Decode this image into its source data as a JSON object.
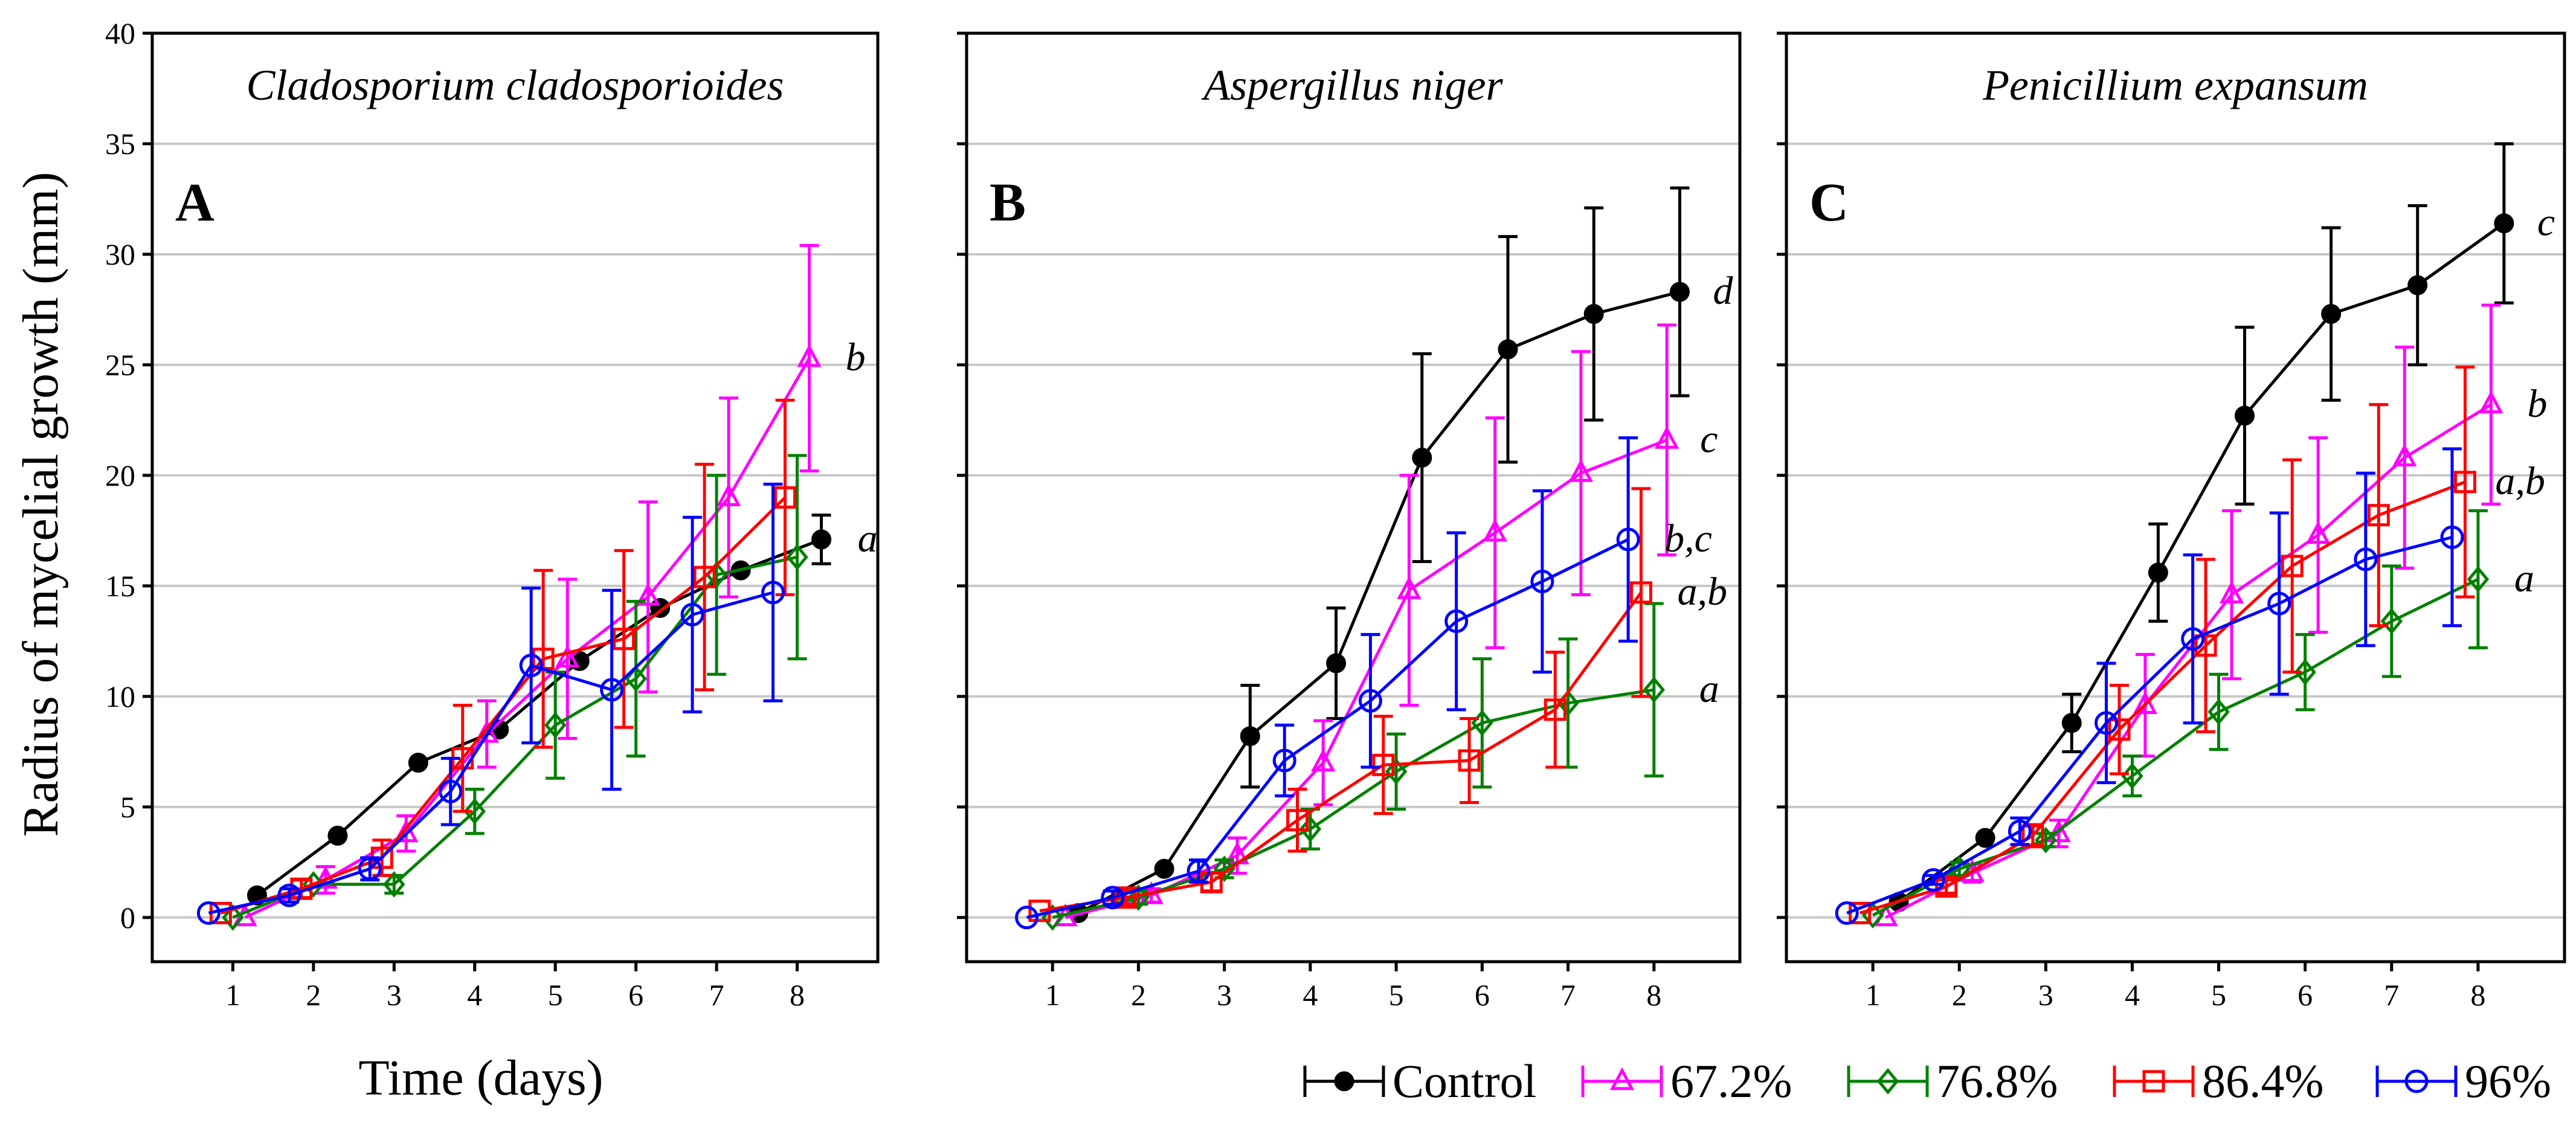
{
  "figure": {
    "ylabel": "Radius of mycelial growth (mm)",
    "xlabel": "Time (days)"
  },
  "series_styles": [
    {
      "name": "Control",
      "color": "#000000",
      "marker": "filled-circle"
    },
    {
      "name": "67.2%",
      "color": "#ff00ff",
      "marker": "triangle"
    },
    {
      "name": "76.8%",
      "color": "#008000",
      "marker": "diamond"
    },
    {
      "name": "86.4%",
      "color": "#ff0000",
      "marker": "square"
    },
    {
      "name": "96%",
      "color": "#0000ff",
      "marker": "circle"
    }
  ],
  "chart_data": [
    {
      "type": "line",
      "panel": "A",
      "title": "Cladosporium cladosporioides",
      "xlabel": "Time (days)",
      "ylabel": "Radius of mycelial growth (mm)",
      "xlim": [
        0,
        9
      ],
      "ylim": [
        -2,
        40
      ],
      "xticks": [
        1,
        2,
        3,
        4,
        5,
        6,
        7,
        8
      ],
      "yticks": [
        0,
        5,
        10,
        15,
        20,
        25,
        30,
        35,
        40
      ],
      "grid": true,
      "series": [
        {
          "name": "Control",
          "x": [
            1.3,
            2.3,
            3.3,
            4.3,
            5.3,
            6.3,
            7.3,
            8.3
          ],
          "values": [
            1.0,
            3.7,
            7.0,
            8.5,
            11.6,
            14.0,
            15.7,
            17.1
          ],
          "errors": [
            0,
            0,
            0,
            0,
            0,
            0,
            0,
            1.1
          ]
        },
        {
          "name": "67.2%",
          "x": [
            1.15,
            2.15,
            3.15,
            4.15,
            5.15,
            6.15,
            7.15,
            8.15
          ],
          "values": [
            0.0,
            1.7,
            3.8,
            8.3,
            11.7,
            14.5,
            19.0,
            25.3
          ],
          "errors": [
            0,
            0.6,
            0.8,
            1.5,
            3.6,
            4.3,
            4.5,
            5.1
          ]
        },
        {
          "name": "76.8%",
          "x": [
            1.0,
            2.0,
            3.0,
            4.0,
            5.0,
            6.0,
            7.0,
            8.0
          ],
          "values": [
            0.0,
            1.5,
            1.5,
            4.8,
            8.7,
            10.8,
            15.5,
            16.3
          ],
          "errors": [
            0,
            0,
            0.4,
            1.0,
            2.4,
            3.5,
            4.5,
            4.6
          ]
        },
        {
          "name": "86.4%",
          "x": [
            0.85,
            1.85,
            2.85,
            3.85,
            4.85,
            5.85,
            6.85,
            7.85
          ],
          "values": [
            0.2,
            1.3,
            2.7,
            7.2,
            11.7,
            12.6,
            15.4,
            19.0
          ],
          "errors": [
            0,
            0.4,
            0.8,
            2.4,
            4.0,
            4.0,
            5.1,
            4.4
          ]
        },
        {
          "name": "96%",
          "x": [
            0.7,
            1.7,
            2.7,
            3.7,
            4.7,
            5.7,
            6.7,
            7.7
          ],
          "values": [
            0.2,
            1.0,
            2.2,
            5.7,
            11.4,
            10.3,
            13.7,
            14.7
          ],
          "errors": [
            0,
            0.3,
            0.5,
            1.5,
            3.5,
            4.5,
            4.4,
            4.9
          ]
        }
      ],
      "significance_labels": [
        {
          "series": "67.2%",
          "text": "b"
        },
        {
          "series": "Control",
          "text": "a"
        }
      ]
    },
    {
      "type": "line",
      "panel": "B",
      "title": "Aspergillus niger",
      "xlabel": "Time (days)",
      "ylabel": "Radius of mycelial growth (mm)",
      "xlim": [
        0,
        9
      ],
      "ylim": [
        -2,
        40
      ],
      "xticks": [
        1,
        2,
        3,
        4,
        5,
        6,
        7,
        8
      ],
      "yticks": [
        0,
        5,
        10,
        15,
        20,
        25,
        30,
        35,
        40
      ],
      "grid": true,
      "series": [
        {
          "name": "Control",
          "x": [
            1.3,
            2.3,
            3.3,
            4.3,
            5.3,
            6.3,
            7.3,
            8.3
          ],
          "values": [
            0.2,
            2.2,
            8.2,
            11.5,
            20.8,
            25.7,
            27.3,
            28.3
          ],
          "errors": [
            0,
            0,
            2.3,
            2.5,
            4.7,
            5.1,
            4.8,
            4.7
          ]
        },
        {
          "name": "67.2%",
          "x": [
            1.15,
            2.15,
            3.15,
            4.15,
            5.15,
            6.15,
            7.15,
            8.15
          ],
          "values": [
            0.0,
            1.0,
            2.8,
            7.0,
            14.8,
            17.4,
            20.1,
            21.6
          ],
          "errors": [
            0,
            0.3,
            0.8,
            1.9,
            5.2,
            5.2,
            5.5,
            5.2
          ]
        },
        {
          "name": "76.8%",
          "x": [
            1.0,
            2.0,
            3.0,
            4.0,
            5.0,
            6.0,
            7.0,
            8.0
          ],
          "values": [
            0.0,
            0.9,
            2.2,
            4.0,
            6.6,
            8.8,
            9.7,
            10.3
          ],
          "errors": [
            0,
            0.3,
            0.4,
            0.9,
            1.7,
            2.9,
            2.9,
            3.9
          ]
        },
        {
          "name": "86.4%",
          "x": [
            0.85,
            1.85,
            2.85,
            3.85,
            4.85,
            5.85,
            6.85,
            7.85
          ],
          "values": [
            0.3,
            0.9,
            1.6,
            4.4,
            6.9,
            7.1,
            9.4,
            14.7
          ],
          "errors": [
            0,
            0.3,
            0.4,
            1.4,
            2.2,
            1.9,
            2.6,
            4.7
          ]
        },
        {
          "name": "96%",
          "x": [
            0.7,
            1.7,
            2.7,
            3.7,
            4.7,
            5.7,
            6.7,
            7.7
          ],
          "values": [
            0.0,
            0.9,
            2.1,
            7.1,
            9.8,
            13.4,
            15.2,
            17.1
          ],
          "errors": [
            0,
            0.3,
            0.5,
            1.6,
            3.0,
            4.0,
            4.1,
            4.6
          ]
        }
      ],
      "significance_labels": [
        {
          "series": "Control",
          "text": "d"
        },
        {
          "series": "67.2%",
          "text": "c"
        },
        {
          "series": "96%",
          "text": "b,c"
        },
        {
          "series": "86.4%",
          "text": "a,b"
        },
        {
          "series": "76.8%",
          "text": "a"
        }
      ]
    },
    {
      "type": "line",
      "panel": "C",
      "title": "Penicillium expansum",
      "xlabel": "Time (days)",
      "ylabel": "Radius of mycelial growth (mm)",
      "xlim": [
        0,
        9
      ],
      "ylim": [
        -2,
        40
      ],
      "xticks": [
        1,
        2,
        3,
        4,
        5,
        6,
        7,
        8
      ],
      "yticks": [
        0,
        5,
        10,
        15,
        20,
        25,
        30,
        35,
        40
      ],
      "grid": true,
      "series": [
        {
          "name": "Control",
          "x": [
            1.3,
            2.3,
            3.3,
            4.3,
            5.3,
            6.3,
            7.3,
            8.3
          ],
          "values": [
            0.7,
            3.6,
            8.8,
            15.6,
            22.7,
            27.3,
            28.6,
            31.4
          ],
          "errors": [
            0,
            0,
            1.3,
            2.2,
            4.0,
            3.9,
            3.6,
            3.6
          ]
        },
        {
          "name": "67.2%",
          "x": [
            1.15,
            2.15,
            3.15,
            4.15,
            5.15,
            6.15,
            7.15,
            8.15
          ],
          "values": [
            0.0,
            2.0,
            3.8,
            9.6,
            14.6,
            17.3,
            20.8,
            23.2
          ],
          "errors": [
            0,
            0.4,
            0.6,
            2.3,
            3.8,
            4.4,
            5.0,
            4.5
          ]
        },
        {
          "name": "76.8%",
          "x": [
            1.0,
            2.0,
            3.0,
            4.0,
            5.0,
            6.0,
            7.0,
            8.0
          ],
          "values": [
            0.1,
            2.2,
            3.5,
            6.4,
            9.3,
            11.1,
            13.4,
            15.3
          ],
          "errors": [
            0,
            0.3,
            0.3,
            0.9,
            1.7,
            1.7,
            2.5,
            3.1
          ]
        },
        {
          "name": "86.4%",
          "x": [
            0.85,
            1.85,
            2.85,
            3.85,
            4.85,
            5.85,
            6.85,
            7.85
          ],
          "values": [
            0.2,
            1.4,
            3.7,
            8.5,
            12.3,
            15.9,
            18.2,
            19.7
          ],
          "errors": [
            0,
            0.3,
            0.5,
            2.0,
            3.9,
            4.8,
            5.0,
            5.2
          ]
        },
        {
          "name": "96%",
          "x": [
            0.7,
            1.7,
            2.7,
            3.7,
            4.7,
            5.7,
            6.7,
            7.7
          ],
          "values": [
            0.2,
            1.7,
            3.9,
            8.8,
            12.6,
            14.2,
            16.2,
            17.2
          ],
          "errors": [
            0,
            0.2,
            0.6,
            2.7,
            3.8,
            4.1,
            3.9,
            4.0
          ]
        }
      ],
      "significance_labels": [
        {
          "series": "Control",
          "text": "c"
        },
        {
          "series": "67.2%",
          "text": "b"
        },
        {
          "series": "86.4%",
          "text": "a,b"
        },
        {
          "series": "76.8%",
          "text": "a"
        }
      ]
    }
  ]
}
